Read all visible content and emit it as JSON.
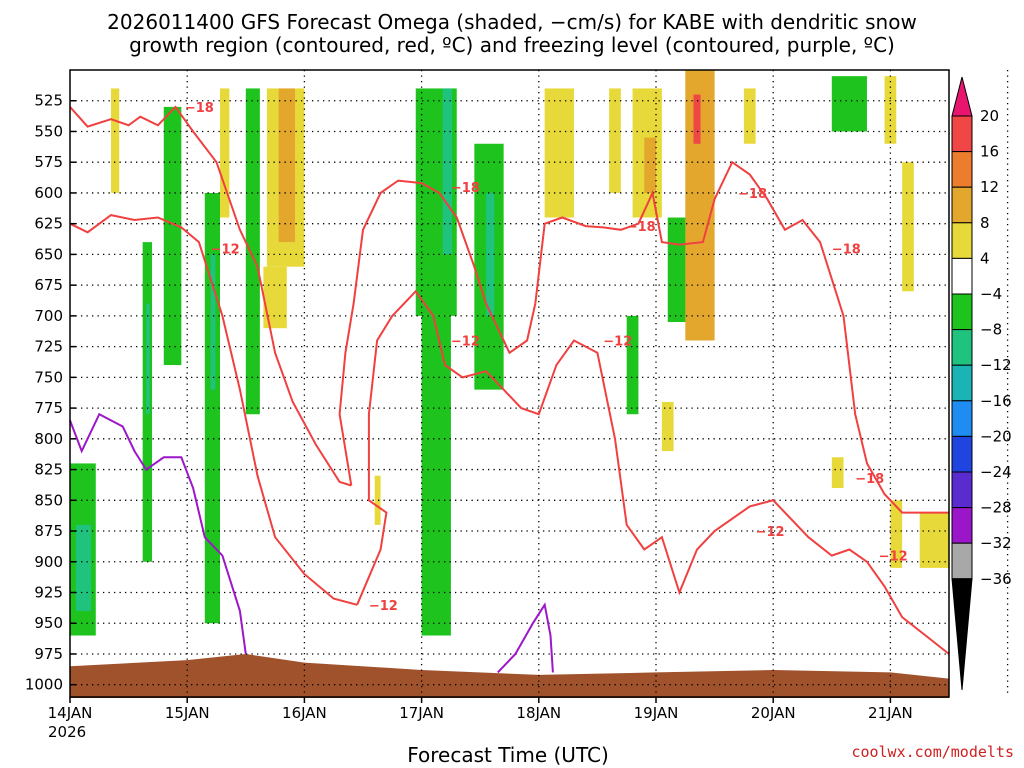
{
  "chart_data": {
    "type": "heatmap",
    "title_line1": "2026011400 GFS Forecast Omega (shaded, −cm/s) for KABE with dendritic snow",
    "title_line2": "growth region (contoured, red, ºC) and freezing level (contoured, purple, ºC)",
    "xlabel": "Forecast Time (UTC)",
    "credit": "coolwx.com/modelts",
    "x_ticks": [
      "14JAN",
      "15JAN",
      "16JAN",
      "17JAN",
      "18JAN",
      "19JAN",
      "20JAN",
      "21JAN"
    ],
    "x_year": "2026",
    "x_range_days": [
      0,
      7.5
    ],
    "y_ticks": [
      "525",
      "550",
      "575",
      "600",
      "625",
      "650",
      "675",
      "700",
      "725",
      "750",
      "775",
      "800",
      "825",
      "850",
      "875",
      "900",
      "925",
      "950",
      "975",
      "1000"
    ],
    "y_range_hpa": [
      500,
      1010
    ],
    "colorbar": {
      "labels": [
        "20",
        "16",
        "12",
        "8",
        "4",
        "−4",
        "−8",
        "−12",
        "−16",
        "−20",
        "−24",
        "−28",
        "−32",
        "−36"
      ],
      "colors": [
        "#e8156e",
        "#f04646",
        "#ec7d2d",
        "#e3a72e",
        "#e8d93a",
        "#ffffff",
        "#1ec31e",
        "#1fc37e",
        "#1ab4b4",
        "#1e8cf0",
        "#2044e0",
        "#5a2ccf",
        "#9a16c8",
        "#a8a8a8",
        "#000000"
      ],
      "shade_edges": [
        20,
        16,
        12,
        8,
        4,
        -4,
        -8,
        -12,
        -16,
        -20,
        -24,
        -28,
        -32,
        -36
      ]
    },
    "omega_regions": [
      {
        "t0": 0.0,
        "t1": 0.22,
        "p_top": 820,
        "p_bot": 960,
        "value": -8
      },
      {
        "t0": 0.05,
        "t1": 0.18,
        "p_top": 870,
        "p_bot": 940,
        "value": -12
      },
      {
        "t0": 0.35,
        "t1": 0.42,
        "p_top": 515,
        "p_bot": 600,
        "value": 5
      },
      {
        "t0": 0.62,
        "t1": 0.7,
        "p_top": 640,
        "p_bot": 900,
        "value": -8
      },
      {
        "t0": 0.65,
        "t1": 0.68,
        "p_top": 690,
        "p_bot": 780,
        "value": -12
      },
      {
        "t0": 0.8,
        "t1": 0.95,
        "p_top": 530,
        "p_bot": 740,
        "value": -8
      },
      {
        "t0": 1.15,
        "t1": 1.28,
        "p_top": 600,
        "p_bot": 950,
        "value": -8
      },
      {
        "t0": 1.2,
        "t1": 1.24,
        "p_top": 650,
        "p_bot": 760,
        "value": -12
      },
      {
        "t0": 1.28,
        "t1": 1.36,
        "p_top": 515,
        "p_bot": 620,
        "value": 5
      },
      {
        "t0": 1.5,
        "t1": 1.62,
        "p_top": 515,
        "p_bot": 780,
        "value": -8
      },
      {
        "t0": 1.68,
        "t1": 2.0,
        "p_top": 515,
        "p_bot": 660,
        "value": 6
      },
      {
        "t0": 1.78,
        "t1": 1.92,
        "p_top": 515,
        "p_bot": 640,
        "value": 9
      },
      {
        "t0": 1.65,
        "t1": 1.85,
        "p_top": 660,
        "p_bot": 710,
        "value": 5
      },
      {
        "t0": 2.6,
        "t1": 2.65,
        "p_top": 830,
        "p_bot": 870,
        "value": 5
      },
      {
        "t0": 2.95,
        "t1": 3.3,
        "p_top": 515,
        "p_bot": 700,
        "value": -8
      },
      {
        "t0": 3.18,
        "t1": 3.26,
        "p_top": 515,
        "p_bot": 650,
        "value": -12
      },
      {
        "t0": 3.0,
        "t1": 3.25,
        "p_top": 700,
        "p_bot": 960,
        "value": -8
      },
      {
        "t0": 3.45,
        "t1": 3.7,
        "p_top": 560,
        "p_bot": 760,
        "value": -8
      },
      {
        "t0": 3.55,
        "t1": 3.62,
        "p_top": 600,
        "p_bot": 700,
        "value": -12
      },
      {
        "t0": 4.05,
        "t1": 4.3,
        "p_top": 515,
        "p_bot": 620,
        "value": 5
      },
      {
        "t0": 4.6,
        "t1": 4.7,
        "p_top": 515,
        "p_bot": 600,
        "value": 5
      },
      {
        "t0": 4.75,
        "t1": 4.85,
        "p_top": 700,
        "p_bot": 780,
        "value": -8
      },
      {
        "t0": 4.8,
        "t1": 5.05,
        "p_top": 515,
        "p_bot": 620,
        "value": 5
      },
      {
        "t0": 4.9,
        "t1": 5.0,
        "p_top": 555,
        "p_bot": 600,
        "value": 10
      },
      {
        "t0": 5.1,
        "t1": 5.3,
        "p_top": 620,
        "p_bot": 705,
        "value": -8
      },
      {
        "t0": 5.25,
        "t1": 5.5,
        "p_top": 500,
        "p_bot": 720,
        "value": 10
      },
      {
        "t0": 5.32,
        "t1": 5.38,
        "p_top": 520,
        "p_bot": 560,
        "value": 17
      },
      {
        "t0": 5.05,
        "t1": 5.15,
        "p_top": 770,
        "p_bot": 810,
        "value": 5
      },
      {
        "t0": 5.75,
        "t1": 5.85,
        "p_top": 515,
        "p_bot": 560,
        "value": 5
      },
      {
        "t0": 6.5,
        "t1": 6.8,
        "p_top": 505,
        "p_bot": 550,
        "value": -8
      },
      {
        "t0": 6.5,
        "t1": 6.6,
        "p_top": 815,
        "p_bot": 840,
        "value": 5
      },
      {
        "t0": 6.95,
        "t1": 7.05,
        "p_top": 505,
        "p_bot": 560,
        "value": 5
      },
      {
        "t0": 7.1,
        "t1": 7.2,
        "p_top": 575,
        "p_bot": 680,
        "value": 5
      },
      {
        "t0": 7.0,
        "t1": 7.1,
        "p_top": 850,
        "p_bot": 905,
        "value": 5
      },
      {
        "t0": 7.25,
        "t1": 7.5,
        "p_top": 860,
        "p_bot": 905,
        "value": 5
      }
    ],
    "contours_neg18c": [
      {
        "label": "−18",
        "label_at": [
          0.98,
          530
        ],
        "points": [
          [
            0.0,
            530
          ],
          [
            0.15,
            546
          ],
          [
            0.35,
            540
          ],
          [
            0.5,
            545
          ],
          [
            0.6,
            538
          ],
          [
            0.75,
            545
          ],
          [
            0.9,
            530
          ],
          [
            1.05,
            550
          ],
          [
            1.25,
            575
          ],
          [
            1.45,
            630
          ],
          [
            1.6,
            660
          ],
          [
            1.75,
            730
          ],
          [
            1.9,
            770
          ],
          [
            2.1,
            805
          ],
          [
            2.3,
            835
          ],
          [
            2.4,
            838
          ]
        ]
      },
      {
        "label": "−18",
        "label_at": [
          3.25,
          595
        ],
        "points": [
          [
            2.4,
            838
          ],
          [
            2.3,
            780
          ],
          [
            2.35,
            730
          ],
          [
            2.42,
            690
          ],
          [
            2.5,
            630
          ],
          [
            2.65,
            600
          ],
          [
            2.8,
            590
          ],
          [
            3.0,
            592
          ],
          [
            3.15,
            600
          ],
          [
            3.3,
            620
          ],
          [
            3.45,
            660
          ],
          [
            3.55,
            690
          ],
          [
            3.65,
            710
          ],
          [
            3.75,
            730
          ],
          [
            3.9,
            720
          ],
          [
            3.97,
            690
          ]
        ]
      },
      {
        "label": "−18",
        "label_at": [
          4.75,
          627
        ],
        "points": [
          [
            3.97,
            690
          ],
          [
            4.05,
            625
          ],
          [
            4.2,
            620
          ],
          [
            4.4,
            627
          ],
          [
            4.55,
            628
          ],
          [
            4.7,
            630
          ],
          [
            4.85,
            625
          ],
          [
            4.97,
            600
          ],
          [
            5.05,
            640
          ],
          [
            5.2,
            642
          ],
          [
            5.4,
            640
          ],
          [
            5.5,
            605
          ],
          [
            5.65,
            575
          ],
          [
            5.8,
            585
          ],
          [
            5.95,
            605
          ],
          [
            6.1,
            630
          ],
          [
            6.25,
            622
          ],
          [
            6.4,
            640
          ],
          [
            6.6,
            700
          ],
          [
            6.7,
            780
          ],
          [
            6.8,
            820
          ],
          [
            6.95,
            845
          ],
          [
            7.1,
            860
          ],
          [
            7.3,
            860
          ],
          [
            7.5,
            860
          ]
        ]
      },
      {
        "label": "−18",
        "label_at": [
          5.7,
          600
        ],
        "points": []
      },
      {
        "label": "−18",
        "label_at": [
          6.5,
          645
        ],
        "points": []
      },
      {
        "label": "−18",
        "label_at": [
          6.7,
          832
        ],
        "points": []
      }
    ],
    "contours_neg12c": [
      {
        "label": "−12",
        "label_at": [
          1.2,
          645
        ],
        "points": [
          [
            0.0,
            625
          ],
          [
            0.15,
            632
          ],
          [
            0.35,
            618
          ],
          [
            0.55,
            622
          ],
          [
            0.75,
            620
          ],
          [
            0.95,
            628
          ],
          [
            1.1,
            640
          ],
          [
            1.3,
            700
          ],
          [
            1.45,
            760
          ],
          [
            1.6,
            830
          ],
          [
            1.75,
            880
          ],
          [
            2.0,
            910
          ],
          [
            2.25,
            930
          ],
          [
            2.45,
            935
          ]
        ]
      },
      {
        "label": "−12",
        "label_at": [
          2.55,
          935
        ],
        "points": [
          [
            2.45,
            935
          ],
          [
            2.65,
            890
          ],
          [
            2.7,
            860
          ],
          [
            2.55,
            850
          ],
          [
            2.55,
            780
          ],
          [
            2.62,
            720
          ],
          [
            2.75,
            700
          ],
          [
            2.95,
            680
          ],
          [
            3.1,
            700
          ],
          [
            3.2,
            740
          ],
          [
            3.35,
            750
          ],
          [
            3.55,
            745
          ],
          [
            3.7,
            760
          ],
          [
            3.85,
            775
          ],
          [
            4.0,
            780
          ],
          [
            4.15,
            740
          ],
          [
            4.3,
            720
          ],
          [
            4.5,
            730
          ],
          [
            4.65,
            800
          ],
          [
            4.75,
            870
          ],
          [
            4.9,
            890
          ],
          [
            5.05,
            880
          ],
          [
            5.2,
            925
          ],
          [
            5.35,
            890
          ],
          [
            5.5,
            875
          ],
          [
            5.8,
            855
          ],
          [
            6.0,
            850
          ],
          [
            6.15,
            865
          ],
          [
            6.3,
            880
          ],
          [
            6.5,
            895
          ],
          [
            6.65,
            890
          ],
          [
            6.8,
            900
          ],
          [
            6.95,
            920
          ],
          [
            7.1,
            945
          ],
          [
            7.3,
            960
          ],
          [
            7.5,
            975
          ]
        ]
      },
      {
        "label": "−12",
        "label_at": [
          3.25,
          720
        ],
        "points": []
      },
      {
        "label": "−12",
        "label_at": [
          4.55,
          720
        ],
        "points": []
      },
      {
        "label": "−12",
        "label_at": [
          5.85,
          875
        ],
        "points": []
      },
      {
        "label": "−12",
        "label_at": [
          6.9,
          895
        ],
        "points": []
      }
    ],
    "contours_0c": [
      {
        "points": [
          [
            0.0,
            785
          ],
          [
            0.1,
            810
          ],
          [
            0.25,
            780
          ],
          [
            0.45,
            790
          ],
          [
            0.55,
            810
          ],
          [
            0.65,
            825
          ],
          [
            0.8,
            815
          ],
          [
            0.95,
            815
          ],
          [
            1.05,
            840
          ],
          [
            1.15,
            880
          ],
          [
            1.3,
            895
          ],
          [
            1.45,
            940
          ],
          [
            1.5,
            975
          ]
        ]
      },
      {
        "points": [
          [
            3.65,
            990
          ],
          [
            3.8,
            975
          ],
          [
            3.95,
            950
          ],
          [
            4.05,
            935
          ],
          [
            4.1,
            960
          ],
          [
            4.12,
            990
          ]
        ]
      }
    ],
    "terrain": [
      [
        0.0,
        985
      ],
      [
        1.0,
        980
      ],
      [
        1.5,
        975
      ],
      [
        2.0,
        982
      ],
      [
        3.0,
        988
      ],
      [
        4.0,
        992
      ],
      [
        5.0,
        990
      ],
      [
        6.0,
        988
      ],
      [
        7.0,
        990
      ],
      [
        7.5,
        995
      ]
    ]
  }
}
